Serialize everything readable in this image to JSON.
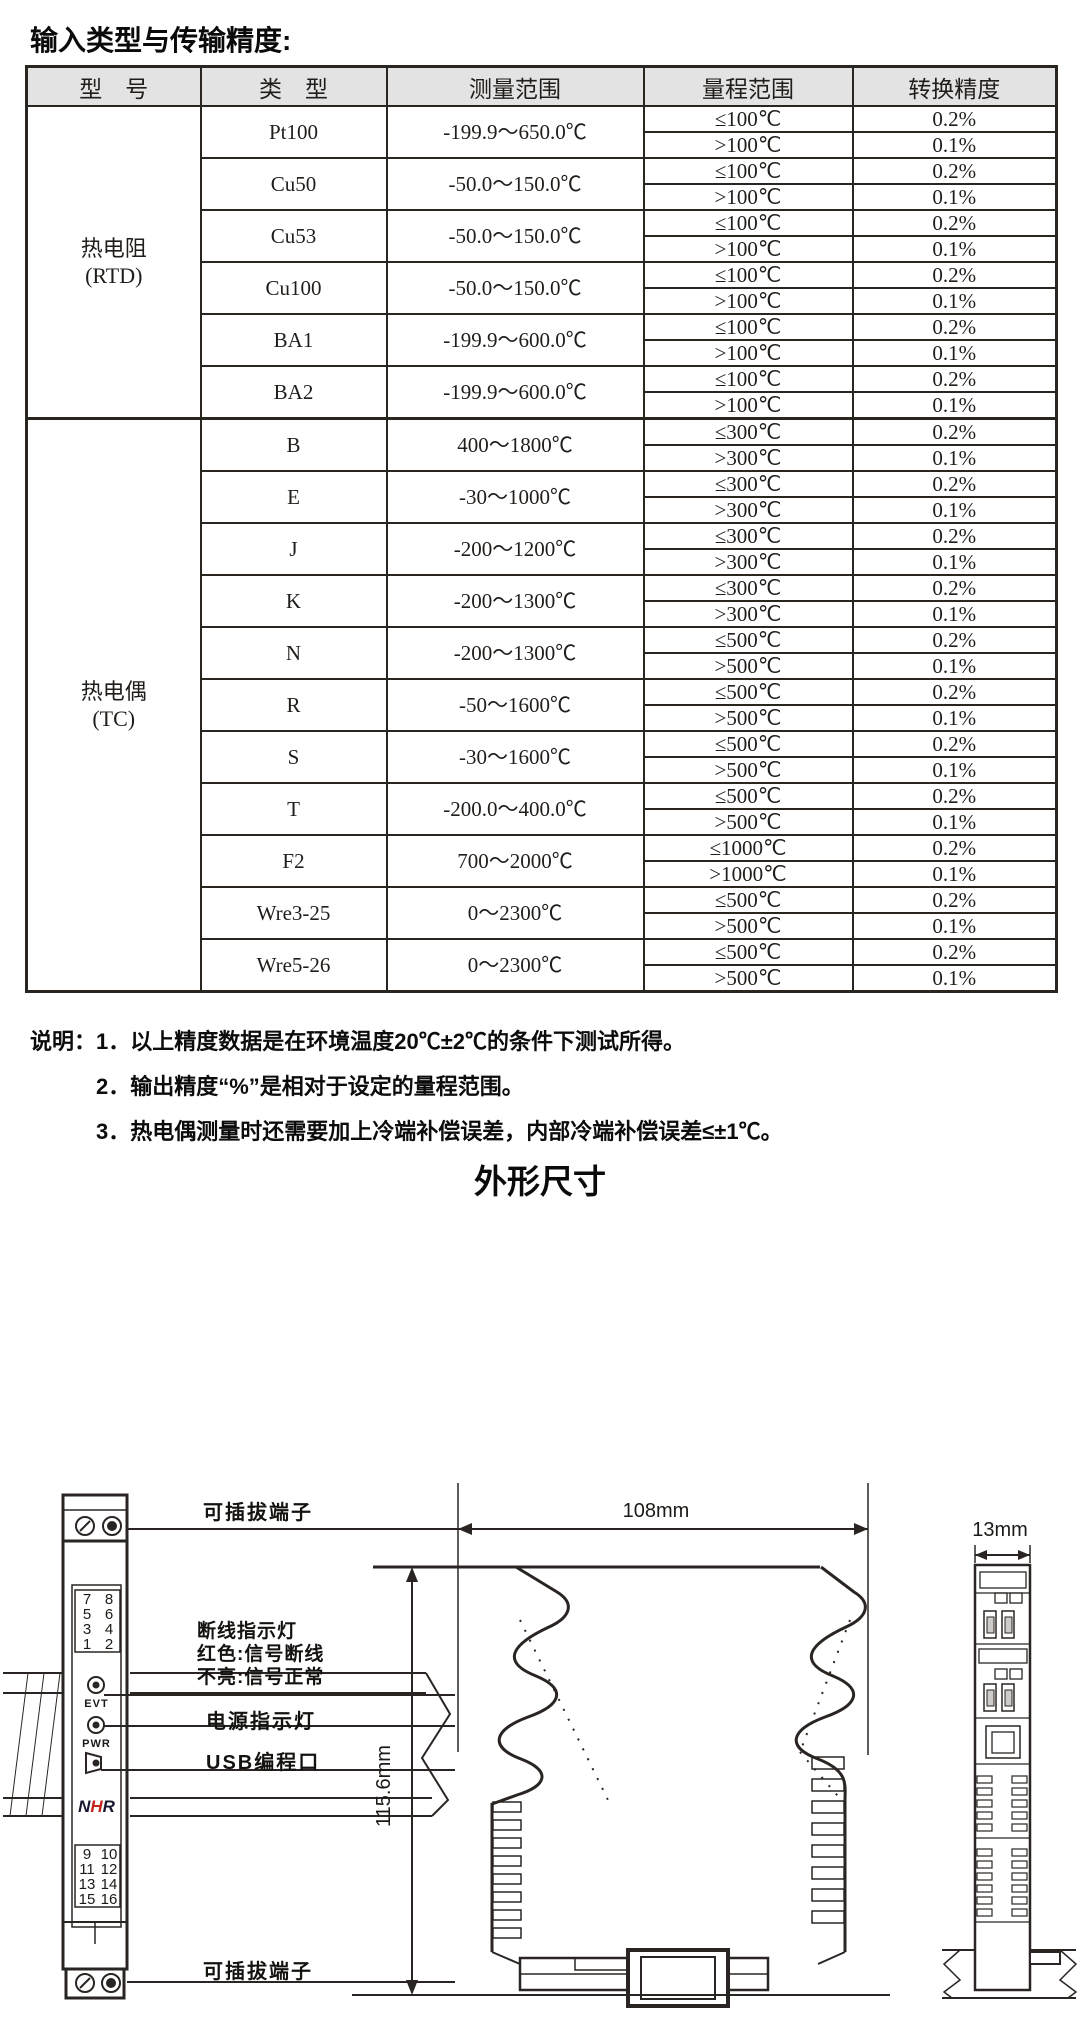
{
  "page": {
    "title": "输入类型与传输精度:",
    "outline_title": "外形尺寸"
  },
  "table": {
    "headers": [
      "型　号",
      "类　型",
      "测量范围",
      "量程范围",
      "转换精度"
    ],
    "groups": [
      {
        "model": "热电阻",
        "model_sub": "(RTD)",
        "rows": [
          {
            "type": "Pt100",
            "measure": "-199.9～650.0℃",
            "ranges": [
              [
                "≤100℃",
                "0.2%"
              ],
              [
                ">100℃",
                "0.1%"
              ]
            ]
          },
          {
            "type": "Cu50",
            "measure": "-50.0～150.0℃",
            "ranges": [
              [
                "≤100℃",
                "0.2%"
              ],
              [
                ">100℃",
                "0.1%"
              ]
            ]
          },
          {
            "type": "Cu53",
            "measure": "-50.0～150.0℃",
            "ranges": [
              [
                "≤100℃",
                "0.2%"
              ],
              [
                ">100℃",
                "0.1%"
              ]
            ]
          },
          {
            "type": "Cu100",
            "measure": "-50.0～150.0℃",
            "ranges": [
              [
                "≤100℃",
                "0.2%"
              ],
              [
                ">100℃",
                "0.1%"
              ]
            ]
          },
          {
            "type": "BA1",
            "measure": "-199.9～600.0℃",
            "ranges": [
              [
                "≤100℃",
                "0.2%"
              ],
              [
                ">100℃",
                "0.1%"
              ]
            ]
          },
          {
            "type": "BA2",
            "measure": "-199.9～600.0℃",
            "ranges": [
              [
                "≤100℃",
                "0.2%"
              ],
              [
                ">100℃",
                "0.1%"
              ]
            ]
          }
        ]
      },
      {
        "model": "热电偶",
        "model_sub": "(TC)",
        "rows": [
          {
            "type": "B",
            "measure": "400～1800℃",
            "ranges": [
              [
                "≤300℃",
                "0.2%"
              ],
              [
                ">300℃",
                "0.1%"
              ]
            ]
          },
          {
            "type": "E",
            "measure": "-30～1000℃",
            "ranges": [
              [
                "≤300℃",
                "0.2%"
              ],
              [
                ">300℃",
                "0.1%"
              ]
            ]
          },
          {
            "type": "J",
            "measure": "-200～1200℃",
            "ranges": [
              [
                "≤300℃",
                "0.2%"
              ],
              [
                ">300℃",
                "0.1%"
              ]
            ]
          },
          {
            "type": "K",
            "measure": "-200～1300℃",
            "ranges": [
              [
                "≤300℃",
                "0.2%"
              ],
              [
                ">300℃",
                "0.1%"
              ]
            ]
          },
          {
            "type": "N",
            "measure": "-200～1300℃",
            "ranges": [
              [
                "≤500℃",
                "0.2%"
              ],
              [
                ">500℃",
                "0.1%"
              ]
            ]
          },
          {
            "type": "R",
            "measure": "-50～1600℃",
            "ranges": [
              [
                "≤500℃",
                "0.2%"
              ],
              [
                ">500℃",
                "0.1%"
              ]
            ]
          },
          {
            "type": "S",
            "measure": "-30～1600℃",
            "ranges": [
              [
                "≤500℃",
                "0.2%"
              ],
              [
                ">500℃",
                "0.1%"
              ]
            ]
          },
          {
            "type": "T",
            "measure": "-200.0～400.0℃",
            "ranges": [
              [
                "≤500℃",
                "0.2%"
              ],
              [
                ">500℃",
                "0.1%"
              ]
            ]
          },
          {
            "type": "F2",
            "measure": "700～2000℃",
            "ranges": [
              [
                "≤1000℃",
                "0.2%"
              ],
              [
                ">1000℃",
                "0.1%"
              ]
            ]
          },
          {
            "type": "Wre3-25",
            "measure": "0～2300℃",
            "ranges": [
              [
                "≤500℃",
                "0.2%"
              ],
              [
                ">500℃",
                "0.1%"
              ]
            ]
          },
          {
            "type": "Wre5-26",
            "measure": "0～2300℃",
            "ranges": [
              [
                "≤500℃",
                "0.2%"
              ],
              [
                ">500℃",
                "0.1%"
              ]
            ]
          }
        ]
      }
    ]
  },
  "notes": {
    "prefix": "说明：",
    "items": [
      "1．以上精度数据是在环境温度20℃±2℃的条件下测试所得。",
      "2．输出精度“%”是相对于设定的量程范围。",
      "3．热电偶测量时还需要加上冷端补偿误差，内部冷端补偿误差≤±1℃。"
    ]
  },
  "outline": {
    "labels": {
      "top_terminal": "可插拔端子",
      "break_title": "断线指示灯",
      "break_red": "红色:信号断线",
      "break_off": "不亮:信号正常",
      "power": "电源指示灯",
      "usb": "USB编程口",
      "bottom_terminal": "可插拔端子"
    },
    "dimensions": {
      "width": "108mm",
      "height": "115.6mm",
      "depth": "13mm"
    },
    "front_view": {
      "top_terminals": [
        "7",
        "8",
        "5",
        "6",
        "3",
        "4",
        "1",
        "2"
      ],
      "bottom_terminals": [
        "9",
        "10",
        "11",
        "12",
        "13",
        "14",
        "15",
        "16"
      ],
      "evt": "EVT",
      "pwr": "PWR",
      "logo_n": "N",
      "logo_h": "H",
      "logo_r": "R"
    },
    "colors": {
      "line": "#2a2522",
      "logo_dark": "#18182e",
      "logo_red": "#c3231b",
      "header_bg": "#e3e3e3"
    }
  }
}
